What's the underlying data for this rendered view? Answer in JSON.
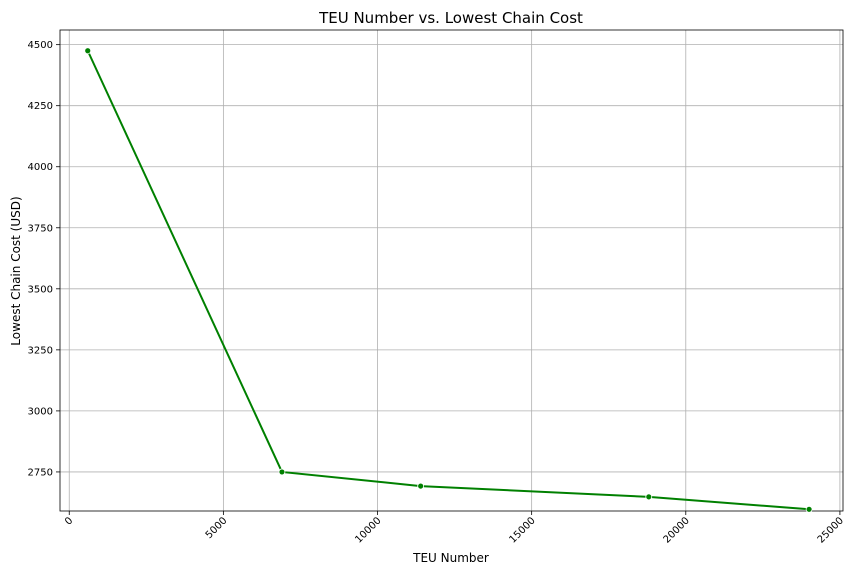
{
  "chart_data": {
    "type": "line",
    "title": "TEU Number vs. Lowest Chain Cost",
    "xlabel": "TEU Number",
    "ylabel": "Lowest Chain Cost (USD)",
    "xlim": [
      -300,
      25100
    ],
    "ylim": [
      2590,
      4560
    ],
    "x_ticks": [
      0,
      5000,
      10000,
      15000,
      20000,
      25000
    ],
    "y_ticks": [
      2750,
      3000,
      3250,
      3500,
      3750,
      4000,
      4250,
      4500
    ],
    "x_tick_rotation": 45,
    "grid": true,
    "series": [
      {
        "color": "#008000",
        "marker": "circle",
        "x": [
          600,
          6900,
          11400,
          18800,
          24000
        ],
        "y": [
          4475,
          2750,
          2692,
          2648,
          2597
        ]
      }
    ]
  }
}
